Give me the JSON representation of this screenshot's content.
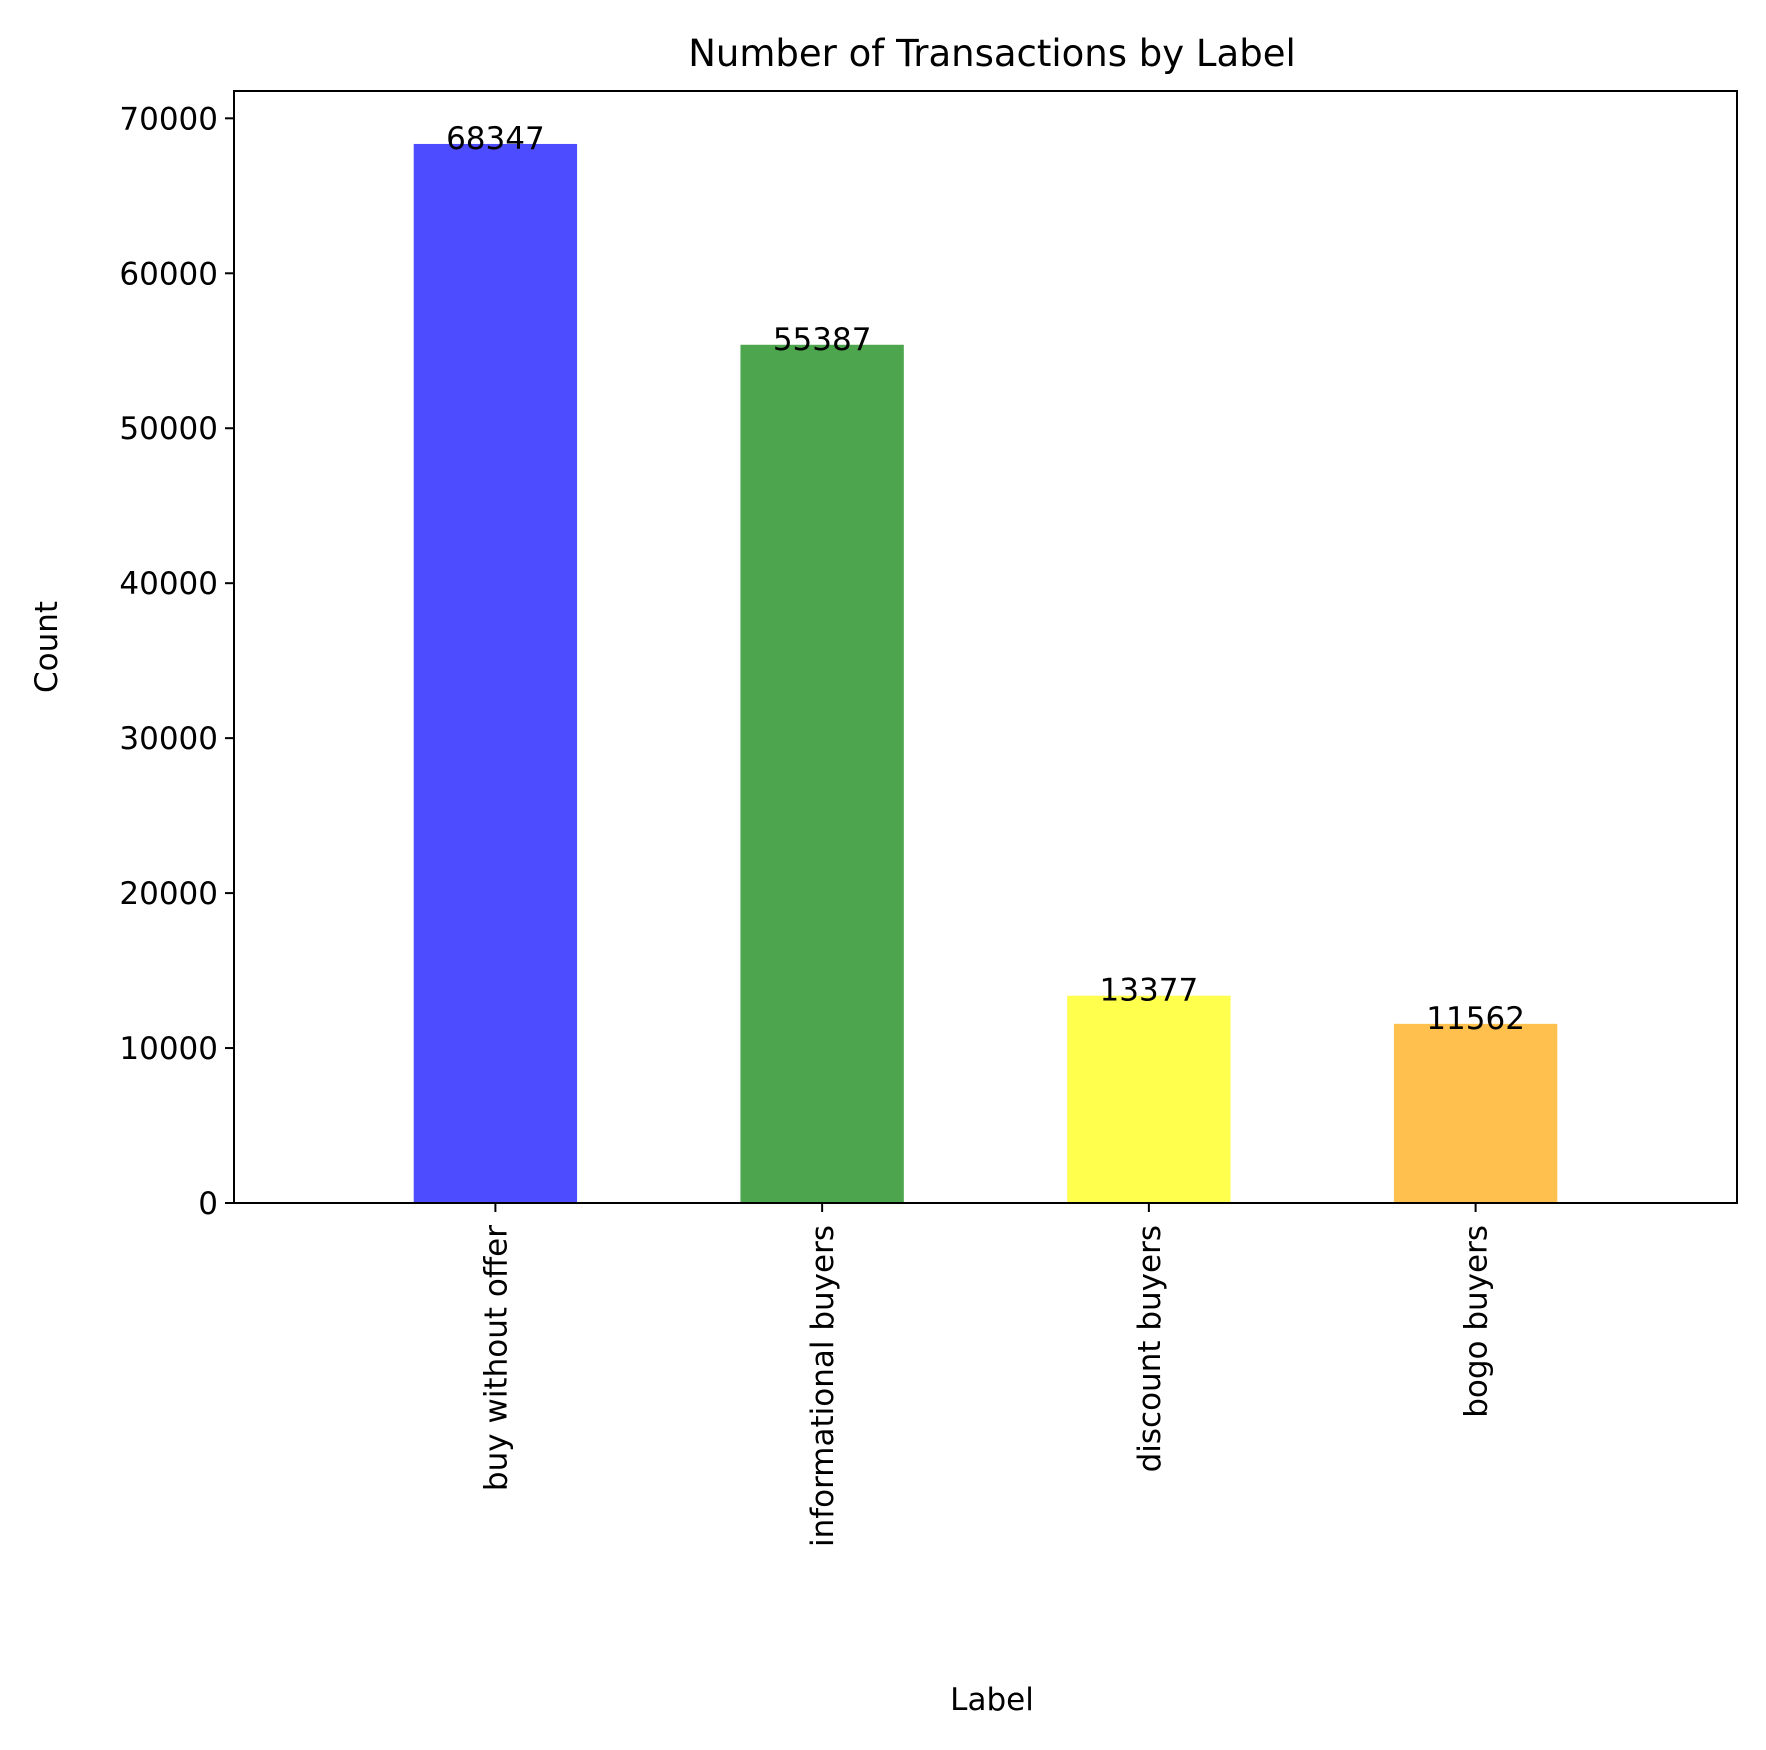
{
  "chart_data": {
    "type": "bar",
    "title": "Number of Transactions by Label",
    "xlabel": "Label",
    "ylabel": "Count",
    "categories": [
      "buy without offer",
      "informational buyers",
      "discount buyers",
      "bogo buyers"
    ],
    "values": [
      68347,
      55387,
      13377,
      11562
    ],
    "value_labels": [
      "68347",
      "55387",
      "13377",
      "11562"
    ],
    "colors": [
      "#4d4dff",
      "#4da64d",
      "#ffff4d",
      "#ffc04d"
    ],
    "ylim": [
      0,
      71764
    ],
    "yticks": [
      0,
      10000,
      20000,
      30000,
      40000,
      50000,
      60000,
      70000
    ],
    "ytick_labels": [
      "0",
      "10000",
      "20000",
      "30000",
      "40000",
      "50000",
      "60000",
      "70000"
    ],
    "grid": false,
    "legend": "none"
  }
}
